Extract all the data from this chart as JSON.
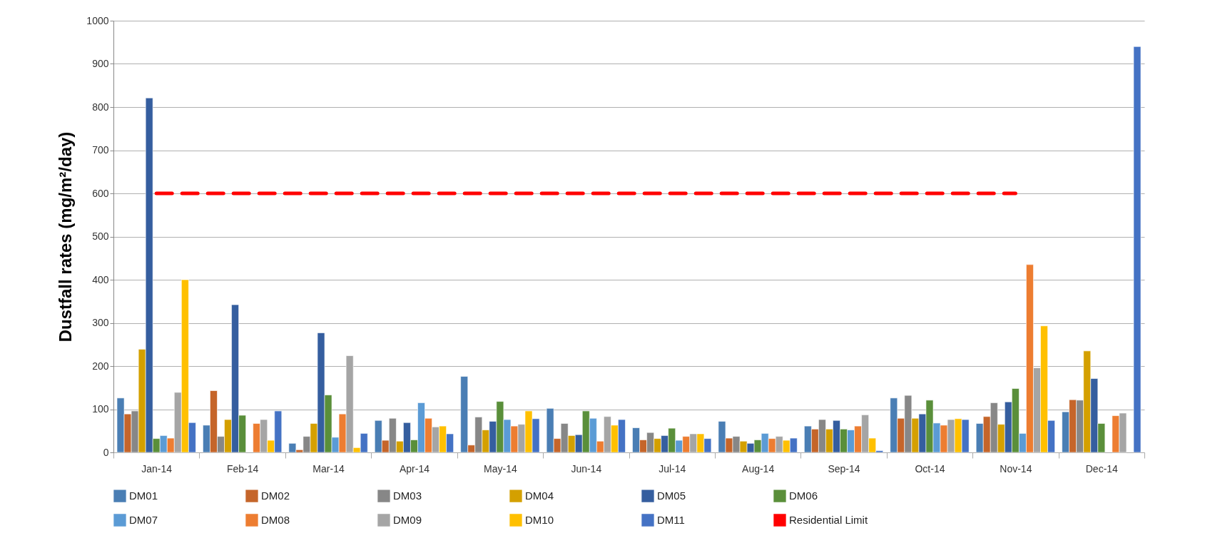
{
  "chart_data": {
    "type": "bar",
    "ylabel": "Dustfall rates (mg/m²/day)",
    "categories": [
      "Jan-14",
      "Feb-14",
      "Mar-14",
      "Apr-14",
      "May-14",
      "Jun-14",
      "Jul-14",
      "Aug-14",
      "Sep-14",
      "Oct-14",
      "Nov-14",
      "Dec-14"
    ],
    "ylim": [
      0,
      1000
    ],
    "yticks": [
      0,
      100,
      200,
      300,
      400,
      500,
      600,
      700,
      800,
      900,
      1000
    ],
    "grid": "y",
    "legend": "bottom",
    "series": [
      {
        "name": "DM01",
        "color": "#4a7eb4",
        "values": [
          126,
          63,
          21,
          74,
          176,
          102,
          57,
          72,
          61,
          126,
          67,
          94
        ]
      },
      {
        "name": "DM02",
        "color": "#c5652a",
        "values": [
          89,
          143,
          6,
          28,
          17,
          32,
          29,
          33,
          54,
          79,
          83,
          122
        ]
      },
      {
        "name": "DM03",
        "color": "#878787",
        "values": [
          96,
          37,
          37,
          79,
          82,
          67,
          46,
          37,
          76,
          132,
          115,
          121
        ]
      },
      {
        "name": "DM04",
        "color": "#d4a000",
        "values": [
          239,
          76,
          67,
          26,
          52,
          39,
          32,
          26,
          54,
          79,
          65,
          235
        ]
      },
      {
        "name": "DM05",
        "color": "#355e9f",
        "values": [
          821,
          342,
          277,
          69,
          72,
          41,
          39,
          21,
          74,
          89,
          117,
          171
        ]
      },
      {
        "name": "DM06",
        "color": "#5a8f3a",
        "values": [
          32,
          86,
          133,
          29,
          118,
          96,
          56,
          29,
          54,
          121,
          148,
          67
        ]
      },
      {
        "name": "DM07",
        "color": "#5b9bd5",
        "values": [
          39,
          null,
          35,
          115,
          76,
          79,
          28,
          44,
          52,
          68,
          44,
          null
        ]
      },
      {
        "name": "DM08",
        "color": "#ed7d31",
        "values": [
          33,
          67,
          89,
          79,
          61,
          26,
          37,
          32,
          61,
          63,
          435,
          85
        ]
      },
      {
        "name": "DM09",
        "color": "#a5a5a5",
        "values": [
          139,
          76,
          224,
          59,
          65,
          83,
          43,
          37,
          87,
          76,
          196,
          91
        ]
      },
      {
        "name": "DM10",
        "color": "#ffc000",
        "values": [
          400,
          28,
          11,
          61,
          96,
          63,
          43,
          28,
          33,
          78,
          293,
          null
        ]
      },
      {
        "name": "DM11",
        "color": "#4472c4",
        "values": [
          69,
          96,
          44,
          43,
          78,
          76,
          32,
          33,
          4,
          76,
          74,
          940
        ]
      },
      {
        "name": "Residential Limit",
        "type": "line",
        "line_style": "dashed",
        "color": "#ff0000",
        "values": [
          600,
          600,
          600,
          600,
          600,
          600,
          600,
          600,
          600,
          600,
          600,
          null
        ]
      }
    ]
  }
}
